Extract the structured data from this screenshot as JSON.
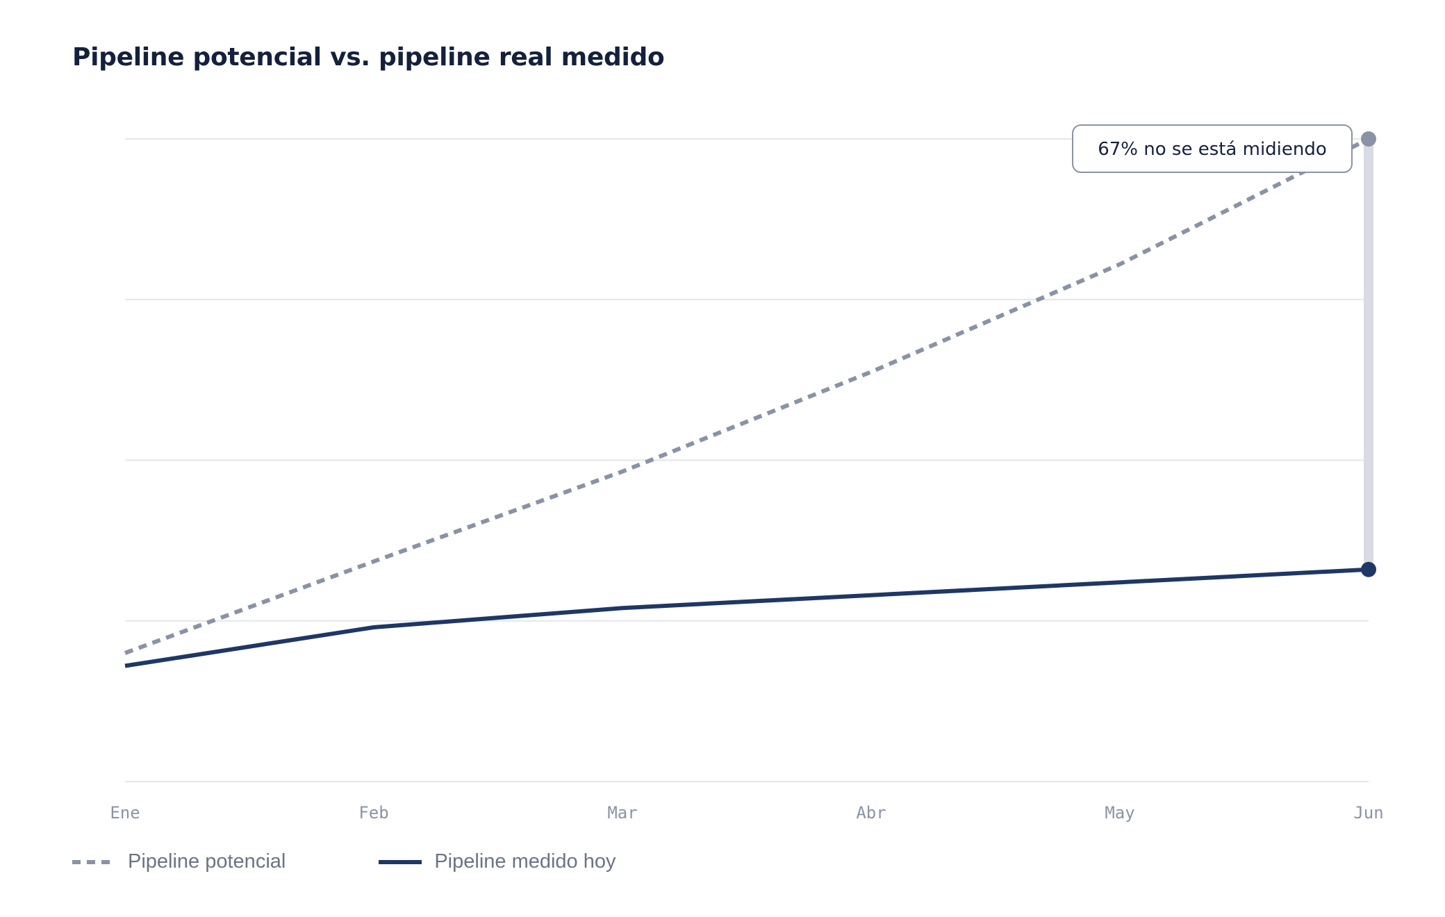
{
  "chart_data": {
    "type": "line",
    "title": "Pipeline potencial vs. pipeline real medido",
    "categories": [
      "Ene",
      "Feb",
      "Mar",
      "Abr",
      "May",
      "Jun"
    ],
    "ylim": [
      0,
      4
    ],
    "grid": true,
    "series": [
      {
        "name": "Pipeline potencial",
        "style": "dashed",
        "color": "#8a93a5",
        "values": [
          0.8,
          1.37,
          1.93,
          2.55,
          3.22,
          4.0
        ]
      },
      {
        "name": "Pipeline medido hoy",
        "style": "solid",
        "color": "#1f3765",
        "values": [
          0.72,
          0.96,
          1.08,
          1.16,
          1.24,
          1.32
        ]
      }
    ],
    "annotation": {
      "text": "67% no se está midiendo",
      "category": "Jun"
    },
    "legend_position": "bottom-left"
  },
  "colors": {
    "title": "#14213d",
    "grid": "#e4e6eb",
    "gap_bar": "#d8dbe3",
    "potential": "#8a93a5",
    "measured": "#1f3765"
  }
}
